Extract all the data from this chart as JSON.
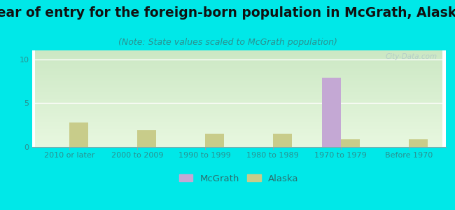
{
  "title": "Year of entry for the foreign-born population in McGrath, Alaska",
  "subtitle": "(Note: State values scaled to McGrath population)",
  "categories": [
    "2010 or later",
    "2000 to 2009",
    "1990 to 1999",
    "1980 to 1989",
    "1970 to 1979",
    "Before 1970"
  ],
  "mcgrath_values": [
    0,
    0,
    0,
    0,
    7.9,
    0
  ],
  "alaska_values": [
    2.8,
    1.9,
    1.5,
    1.5,
    0.85,
    0.85
  ],
  "mcgrath_color": "#c4a8d4",
  "alaska_color": "#c8cc8a",
  "bg_color": "#00e8e8",
  "plot_bg_top_left": "#d8efd0",
  "plot_bg_bot_right": "#eafae0",
  "ylim": [
    0,
    11
  ],
  "yticks": [
    0,
    5,
    10
  ],
  "bar_width": 0.28,
  "title_fontsize": 13.5,
  "subtitle_fontsize": 9,
  "tick_fontsize": 8,
  "legend_fontsize": 9.5
}
